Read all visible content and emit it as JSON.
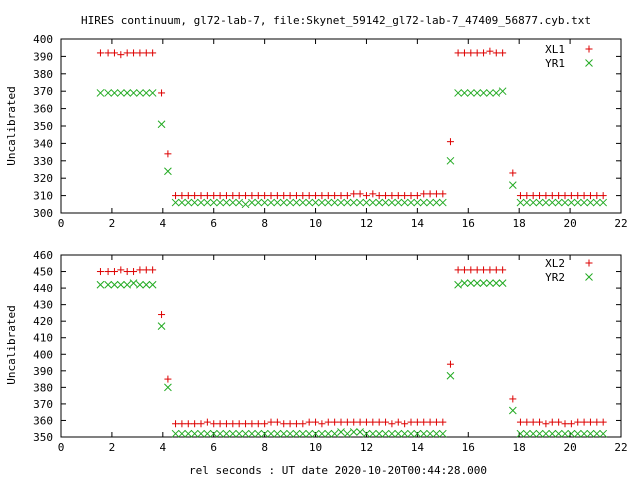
{
  "title": "HIRES continuum, gl72-lab-7, file:Skynet_59142_gl72-lab-7_47409_56877.cyb.txt",
  "xlabel": "rel seconds : UT date 2020-10-20T00:44:28.000",
  "colors": {
    "series1": "#dd0000",
    "series2": "#22aa22",
    "axis": "#000000"
  },
  "chart_data": [
    {
      "type": "scatter",
      "ylabel": "Uncalibrated",
      "xlim": [
        0,
        22
      ],
      "ylim": [
        300,
        400
      ],
      "xticks": [
        0,
        2,
        4,
        6,
        8,
        10,
        12,
        14,
        16,
        18,
        20,
        22
      ],
      "yticks": [
        300,
        310,
        320,
        330,
        340,
        350,
        360,
        370,
        380,
        390,
        400
      ],
      "legend_position": "top-right",
      "series": [
        {
          "name": "XL1",
          "marker": "plus",
          "x": [
            1.55,
            1.85,
            2.1,
            2.35,
            2.6,
            2.85,
            3.1,
            3.35,
            3.6,
            3.95,
            4.2,
            4.5,
            4.75,
            5.0,
            5.25,
            5.5,
            5.75,
            6.0,
            6.25,
            6.5,
            6.75,
            7.0,
            7.25,
            7.5,
            7.75,
            8.0,
            8.25,
            8.5,
            8.75,
            9.0,
            9.25,
            9.5,
            9.75,
            10.0,
            10.25,
            10.5,
            10.75,
            11.0,
            11.25,
            11.5,
            11.75,
            12.0,
            12.25,
            12.5,
            12.75,
            13.0,
            13.25,
            13.5,
            13.75,
            14.0,
            14.25,
            14.5,
            14.75,
            15.0,
            15.3,
            15.6,
            15.85,
            16.1,
            16.35,
            16.6,
            16.85,
            17.1,
            17.35,
            17.75,
            18.05,
            18.3,
            18.55,
            18.8,
            19.05,
            19.3,
            19.55,
            19.8,
            20.05,
            20.3,
            20.55,
            20.8,
            21.05,
            21.3
          ],
          "y": [
            392,
            392,
            392,
            391,
            392,
            392,
            392,
            392,
            392,
            369,
            334,
            310,
            310,
            310,
            310,
            310,
            310,
            310,
            310,
            310,
            310,
            310,
            310,
            310,
            310,
            310,
            310,
            310,
            310,
            310,
            310,
            310,
            310,
            310,
            310,
            310,
            310,
            310,
            310,
            311,
            311,
            310,
            311,
            310,
            310,
            310,
            310,
            310,
            310,
            310,
            311,
            311,
            311,
            311,
            341,
            392,
            392,
            392,
            392,
            392,
            393,
            392,
            392,
            323,
            310,
            310,
            310,
            310,
            310,
            310,
            310,
            310,
            310,
            310,
            310,
            310,
            310,
            310
          ]
        },
        {
          "name": "YR1",
          "marker": "cross",
          "x": [
            1.55,
            1.85,
            2.1,
            2.35,
            2.6,
            2.85,
            3.1,
            3.35,
            3.6,
            3.95,
            4.2,
            4.5,
            4.75,
            5.0,
            5.25,
            5.5,
            5.75,
            6.0,
            6.25,
            6.5,
            6.75,
            7.0,
            7.25,
            7.5,
            7.75,
            8.0,
            8.25,
            8.5,
            8.75,
            9.0,
            9.25,
            9.5,
            9.75,
            10.0,
            10.25,
            10.5,
            10.75,
            11.0,
            11.25,
            11.5,
            11.75,
            12.0,
            12.25,
            12.5,
            12.75,
            13.0,
            13.25,
            13.5,
            13.75,
            14.0,
            14.25,
            14.5,
            14.75,
            15.0,
            15.3,
            15.6,
            15.85,
            16.1,
            16.35,
            16.6,
            16.85,
            17.1,
            17.35,
            17.75,
            18.05,
            18.3,
            18.55,
            18.8,
            19.05,
            19.3,
            19.55,
            19.8,
            20.05,
            20.3,
            20.55,
            20.8,
            21.05,
            21.3
          ],
          "y": [
            369,
            369,
            369,
            369,
            369,
            369,
            369,
            369,
            369,
            351,
            324,
            306,
            306,
            306,
            306,
            306,
            306,
            306,
            306,
            306,
            306,
            306,
            305,
            306,
            306,
            306,
            306,
            306,
            306,
            306,
            306,
            306,
            306,
            306,
            306,
            306,
            306,
            306,
            306,
            306,
            306,
            306,
            306,
            306,
            306,
            306,
            306,
            306,
            306,
            306,
            306,
            306,
            306,
            306,
            330,
            369,
            369,
            369,
            369,
            369,
            369,
            369,
            370,
            316,
            306,
            306,
            306,
            306,
            306,
            306,
            306,
            306,
            306,
            306,
            306,
            306,
            306,
            306
          ]
        }
      ]
    },
    {
      "type": "scatter",
      "ylabel": "Uncalibrated",
      "xlim": [
        0,
        22
      ],
      "ylim": [
        350,
        460
      ],
      "xticks": [
        0,
        2,
        4,
        6,
        8,
        10,
        12,
        14,
        16,
        18,
        20,
        22
      ],
      "yticks": [
        350,
        360,
        370,
        380,
        390,
        400,
        410,
        420,
        430,
        440,
        450,
        460
      ],
      "legend_position": "top-right",
      "series": [
        {
          "name": "XL2",
          "marker": "plus",
          "x": [
            1.55,
            1.85,
            2.1,
            2.35,
            2.6,
            2.85,
            3.1,
            3.35,
            3.6,
            3.95,
            4.2,
            4.5,
            4.75,
            5.0,
            5.25,
            5.5,
            5.75,
            6.0,
            6.25,
            6.5,
            6.75,
            7.0,
            7.25,
            7.5,
            7.75,
            8.0,
            8.25,
            8.5,
            8.75,
            9.0,
            9.25,
            9.5,
            9.75,
            10.0,
            10.25,
            10.5,
            10.75,
            11.0,
            11.25,
            11.5,
            11.75,
            12.0,
            12.25,
            12.5,
            12.75,
            13.0,
            13.25,
            13.5,
            13.75,
            14.0,
            14.25,
            14.5,
            14.75,
            15.0,
            15.3,
            15.6,
            15.85,
            16.1,
            16.35,
            16.6,
            16.85,
            17.1,
            17.35,
            17.75,
            18.05,
            18.3,
            18.55,
            18.8,
            19.05,
            19.3,
            19.55,
            19.8,
            20.05,
            20.3,
            20.55,
            20.8,
            21.05,
            21.3
          ],
          "y": [
            450,
            450,
            450,
            451,
            450,
            450,
            451,
            451,
            451,
            424,
            385,
            358,
            358,
            358,
            358,
            358,
            359,
            358,
            358,
            358,
            358,
            358,
            358,
            358,
            358,
            358,
            359,
            359,
            358,
            358,
            358,
            358,
            359,
            359,
            358,
            359,
            359,
            359,
            359,
            359,
            359,
            359,
            359,
            359,
            359,
            358,
            359,
            358,
            359,
            359,
            359,
            359,
            359,
            359,
            394,
            451,
            451,
            451,
            451,
            451,
            451,
            451,
            451,
            373,
            359,
            359,
            359,
            359,
            358,
            359,
            359,
            358,
            358,
            359,
            359,
            359,
            359,
            359
          ]
        },
        {
          "name": "YR2",
          "marker": "cross",
          "x": [
            1.55,
            1.85,
            2.1,
            2.35,
            2.6,
            2.85,
            3.1,
            3.35,
            3.6,
            3.95,
            4.2,
            4.5,
            4.75,
            5.0,
            5.25,
            5.5,
            5.75,
            6.0,
            6.25,
            6.5,
            6.75,
            7.0,
            7.25,
            7.5,
            7.75,
            8.0,
            8.25,
            8.5,
            8.75,
            9.0,
            9.25,
            9.5,
            9.75,
            10.0,
            10.25,
            10.5,
            10.75,
            11.0,
            11.25,
            11.5,
            11.75,
            12.0,
            12.25,
            12.5,
            12.75,
            13.0,
            13.25,
            13.5,
            13.75,
            14.0,
            14.25,
            14.5,
            14.75,
            15.0,
            15.3,
            15.6,
            15.85,
            16.1,
            16.35,
            16.6,
            16.85,
            17.1,
            17.35,
            17.75,
            18.05,
            18.3,
            18.55,
            18.8,
            19.05,
            19.3,
            19.55,
            19.8,
            20.05,
            20.3,
            20.55,
            20.8,
            21.05,
            21.3
          ],
          "y": [
            442,
            442,
            442,
            442,
            442,
            443,
            442,
            442,
            442,
            417,
            380,
            352,
            352,
            352,
            352,
            352,
            352,
            352,
            352,
            352,
            352,
            352,
            352,
            352,
            352,
            352,
            352,
            352,
            352,
            352,
            352,
            352,
            352,
            352,
            352,
            352,
            352,
            353,
            352,
            353,
            353,
            352,
            352,
            352,
            352,
            352,
            352,
            352,
            352,
            352,
            352,
            352,
            352,
            352,
            387,
            442,
            443,
            443,
            443,
            443,
            443,
            443,
            443,
            366,
            352,
            352,
            352,
            352,
            352,
            352,
            352,
            352,
            352,
            352,
            352,
            352,
            352,
            352
          ]
        }
      ]
    }
  ]
}
